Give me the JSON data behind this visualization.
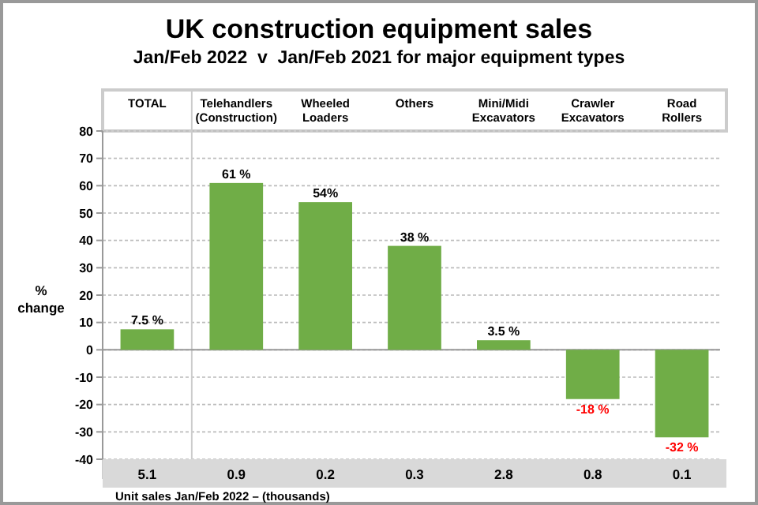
{
  "chart_data": {
    "type": "bar",
    "title": "UK construction equipment sales",
    "subtitle": "Jan/Feb 2022  v  Jan/Feb 2021 for major equipment types",
    "ylabel": "% change",
    "categories": [
      "TOTAL",
      "Telehandlers (Construction)",
      "Wheeled Loaders",
      "Others",
      "Mini/Midi Excavators",
      "Crawler Excavators",
      "Road Rollers"
    ],
    "values": [
      7.5,
      61,
      54,
      38,
      3.5,
      -18,
      -32
    ],
    "value_labels": [
      "7.5 %",
      "61 %",
      "54%",
      "38 %",
      "3.5 %",
      "-18 %",
      "-32 %"
    ],
    "color": "#70ad47",
    "ylim": [
      -40,
      80
    ],
    "yticks": [
      -40,
      -30,
      -20,
      -10,
      0,
      10,
      20,
      30,
      40,
      50,
      60,
      70,
      80
    ],
    "grid": "y",
    "annotations": [
      "5.1",
      "0.9",
      "0.2",
      "0.3",
      "2.8",
      "0.8",
      "0.1",
      "Unit sales Jan/Feb 2022 – (thousands)"
    ]
  }
}
